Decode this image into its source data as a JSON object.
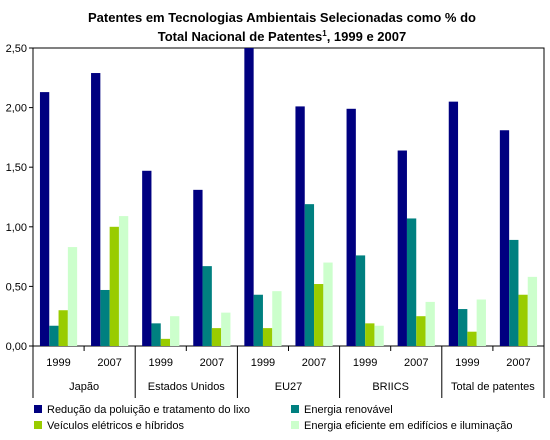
{
  "chart_data": {
    "type": "bar",
    "title_line1": "Patentes em Tecnologias Ambientais Selecionadas como % do",
    "title_line2_main": "Total Nacional de Patentes",
    "title_line2_sup": "1",
    "title_line2_end": ", 1999 e 2007",
    "xlabel": "",
    "ylabel": "",
    "ylim": [
      0,
      2.5
    ],
    "yticks": [
      "0,00",
      "0,50",
      "1,00",
      "1,50",
      "2,00",
      "2,50"
    ],
    "groups": [
      "Japão",
      "Estados Unidos",
      "EU27",
      "BRIICS",
      "Total de patentes"
    ],
    "years": [
      "1999",
      "2007"
    ],
    "legend_placement": "bottom",
    "series": [
      {
        "name": "Redução da poluição e tratamento do lixo",
        "color": "#000080",
        "values": [
          2.13,
          2.29,
          1.47,
          1.31,
          2.5,
          2.01,
          1.99,
          1.64,
          2.05,
          1.81
        ]
      },
      {
        "name": "Energia renovável",
        "color": "#008080",
        "values": [
          0.17,
          0.47,
          0.19,
          0.67,
          0.43,
          1.19,
          0.76,
          1.07,
          0.31,
          0.89
        ]
      },
      {
        "name": "Veículos elétricos e híbridos",
        "color": "#99cc00",
        "values": [
          0.3,
          1.0,
          0.06,
          0.15,
          0.15,
          0.52,
          0.19,
          0.25,
          0.12,
          0.43
        ]
      },
      {
        "name": "Energia eficiente em edifícios e iluminação",
        "color": "#ccffcc",
        "values": [
          0.83,
          1.09,
          0.25,
          0.28,
          0.46,
          0.7,
          0.17,
          0.37,
          0.39,
          0.58
        ]
      }
    ]
  }
}
